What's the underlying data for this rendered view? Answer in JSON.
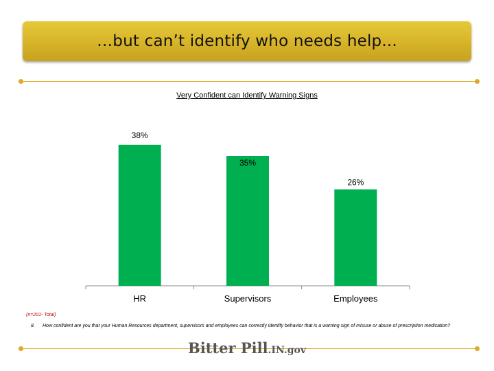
{
  "header": {
    "title": "…but can’t identify who needs help..."
  },
  "colors": {
    "accent": "#e0a826",
    "bar": "#00b050",
    "banner": "#d8b52a"
  },
  "chart_data": {
    "type": "bar",
    "title": "Very Confident can Identify Warning Signs",
    "categories": [
      "HR",
      "Supervisors",
      "Employees"
    ],
    "values": [
      38,
      35,
      26
    ],
    "data_labels": [
      "38%",
      "35%",
      "26%"
    ],
    "ylim": [
      0,
      40
    ],
    "grid": false,
    "legend": "none"
  },
  "footnotes": {
    "sample": "(n=201- Total)",
    "question_number": "8.",
    "question_text": "How confident are you that your Human Resources department, supervisors and employees can correctly identify behavior that is a warning sign of misuse or abuse of prescription medication?"
  },
  "logo": {
    "main": "Bitter Pill",
    "domain": ".IN.gov"
  }
}
